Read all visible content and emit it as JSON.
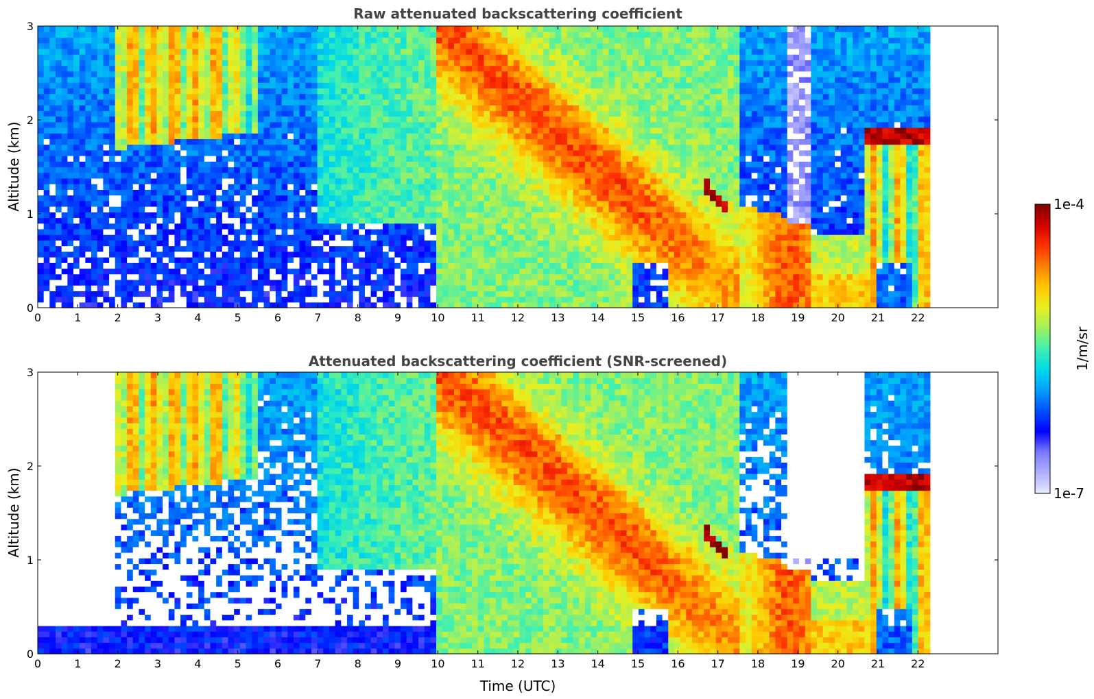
{
  "chart_data": [
    {
      "type": "heatmap",
      "title": "Raw attenuated backscattering coefficient",
      "xlabel": "",
      "ylabel": "Altitude (km)",
      "xlim": [
        0,
        24
      ],
      "ylim": [
        0,
        3
      ],
      "x_ticks": [
        "0",
        "1",
        "2",
        "3",
        "4",
        "5",
        "6",
        "7",
        "8",
        "9",
        "10",
        "11",
        "12",
        "13",
        "14",
        "15",
        "16",
        "17",
        "18",
        "19",
        "20",
        "21",
        "22"
      ],
      "y_ticks": [
        "0",
        "1",
        "2",
        "3"
      ],
      "data_extent_hours": [
        0,
        22.3
      ],
      "screened": false,
      "features": [
        {
          "name": "boundary layer",
          "x": [
            0,
            22.3
          ],
          "y": [
            0,
            0.4
          ],
          "level": "low"
        },
        {
          "name": "fall streaks",
          "x": [
            1.8,
            5.5
          ],
          "y": [
            1.6,
            3.0
          ],
          "level": "medium"
        },
        {
          "name": "descending cloud",
          "x": [
            10,
            15.5
          ],
          "y": [
            1.0,
            3.0
          ],
          "level": "high"
        },
        {
          "name": "lower cloud",
          "x": [
            15.5,
            19.2
          ],
          "y": [
            0,
            1.4
          ],
          "level": "high"
        },
        {
          "name": "cloud top layer",
          "x": [
            20.7,
            22.3
          ],
          "y": [
            1.8,
            2.0
          ],
          "level": "very high"
        }
      ]
    },
    {
      "type": "heatmap",
      "title": "Attenuated backscattering coefficient (SNR-screened)",
      "xlabel": "Time (UTC)",
      "ylabel": "Altitude (km)",
      "xlim": [
        0,
        24
      ],
      "ylim": [
        0,
        3
      ],
      "x_ticks": [
        "0",
        "1",
        "2",
        "3",
        "4",
        "5",
        "6",
        "7",
        "8",
        "9",
        "10",
        "11",
        "12",
        "13",
        "14",
        "15",
        "16",
        "17",
        "18",
        "19",
        "20",
        "21",
        "22"
      ],
      "y_ticks": [
        "0",
        "1",
        "2",
        "3"
      ],
      "data_extent_hours": [
        0,
        22.3
      ],
      "screened": true
    }
  ],
  "colorbar": {
    "label": "1/m/sr",
    "max_label": "1e-4",
    "min_label": "1e-7",
    "scale": "log",
    "range": [
      1e-07,
      0.0001
    ],
    "colormap": [
      "#e8e8ff",
      "#b0b0ff",
      "#7a7aff",
      "#0000ff",
      "#0050ff",
      "#00a0ff",
      "#00d8e8",
      "#40f0b0",
      "#a0f060",
      "#e8f020",
      "#ffc800",
      "#ff8000",
      "#ff3000",
      "#d00000",
      "#800000"
    ]
  }
}
